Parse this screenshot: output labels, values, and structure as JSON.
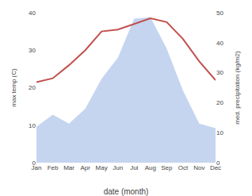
{
  "chart_data": {
    "type": "line",
    "xlabel": "date (month)",
    "ylabel": "max temp (C)",
    "y2label": "med. precipitation (kg/m2)",
    "categories": [
      "Jan",
      "Feb",
      "Mar",
      "Apr",
      "May",
      "Jun",
      "Jul",
      "Aug",
      "Sep",
      "Oct",
      "Nov",
      "Dec"
    ],
    "series": [
      {
        "type": "area",
        "axis": "y2",
        "color": "#c5d5f0",
        "values": [
          12.0,
          16.0,
          13.0,
          18.0,
          28.0,
          35.0,
          48.0,
          48.5,
          38.0,
          24.0,
          13.0,
          11.5
        ]
      },
      {
        "type": "line",
        "color": "#c0504d",
        "values": [
          21.5,
          22.5,
          26.0,
          30.0,
          35.0,
          35.5,
          37.0,
          38.5,
          37.5,
          33.0,
          27.0,
          22.0
        ]
      }
    ],
    "ylim": [
      0,
      40
    ],
    "yticks": [
      0,
      10,
      20,
      30,
      40
    ],
    "y2lim": [
      0,
      50
    ],
    "y2ticks": [
      0,
      10,
      20,
      30,
      40,
      50
    ],
    "grid": false
  }
}
